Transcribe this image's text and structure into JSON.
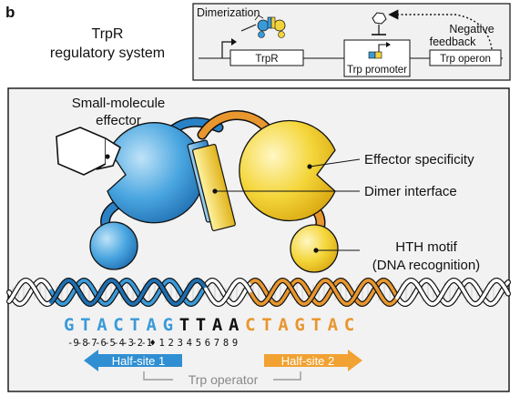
{
  "panel_label": "b",
  "system_title_line1": "TrpR",
  "system_title_line2": "regulatory system",
  "inset": {
    "dimerization": "Dimerization",
    "negative_line1": "Negative",
    "negative_line2": "feedback",
    "trpr_gene": "TrpR",
    "trp_promoter": "Trp promoter",
    "trp_operon": "Trp operon"
  },
  "labels": {
    "effector_line1": "Small-molecule",
    "effector_line2": "effector",
    "effector_specificity": "Effector specificity",
    "dimer_interface": "Dimer interface",
    "hth_line1": "HTH motif",
    "hth_line2": "(DNA recognition)"
  },
  "sequence": {
    "left": [
      "G",
      "T",
      "A",
      "C",
      "T",
      "A",
      "G"
    ],
    "middle": [
      "T",
      "T",
      "A",
      "A"
    ],
    "right": [
      "C",
      "T",
      "A",
      "G",
      "T",
      "A",
      "C"
    ],
    "positions": [
      "-9",
      "-8",
      "-7",
      "-6",
      "-5",
      "-4",
      "-3",
      "-2",
      "-1",
      "♦",
      "1",
      "2",
      "3",
      "4",
      "5",
      "6",
      "7",
      "8",
      "9"
    ]
  },
  "half_site_1": "Half-site 1",
  "half_site_2": "Half-site 2",
  "trp_operator": "Trp operator",
  "colors": {
    "blue": "#3a9ad9",
    "blue_dark": "#1f6fb0",
    "yellow": "#f3d33c",
    "orange": "#e8962e",
    "inset_bg": "#f1f1f1",
    "main_bg": "#f2f2f2",
    "operator_gray": "#999999"
  }
}
